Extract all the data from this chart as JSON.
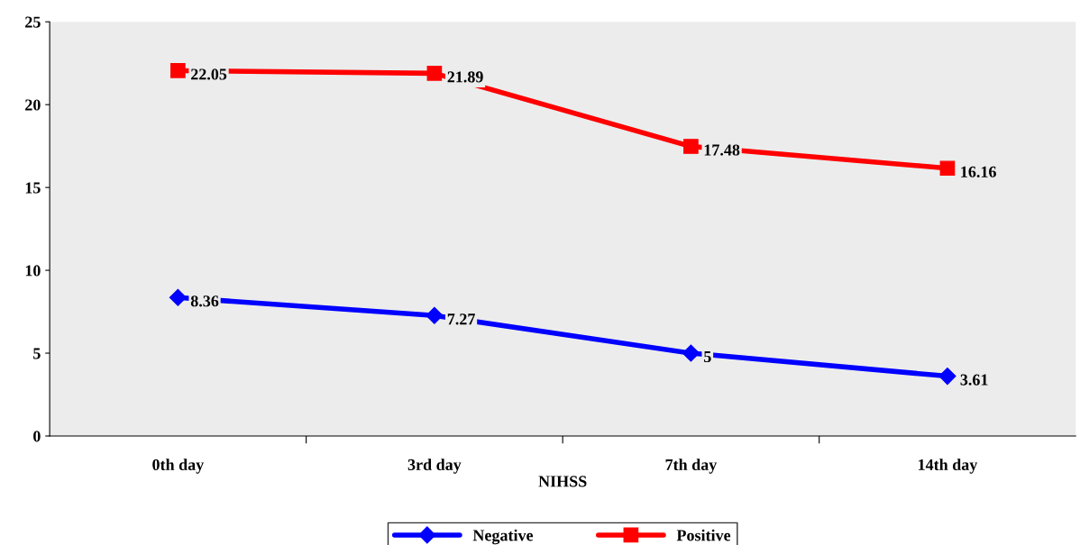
{
  "chart_data": {
    "type": "line",
    "xlabel": "NIHSS",
    "categories": [
      "0th day",
      "3rd day",
      "7th day",
      "14th day"
    ],
    "series": [
      {
        "name": "Negative",
        "color": "#0000ff",
        "marker": "diamond",
        "values": [
          8.36,
          7.27,
          5,
          3.61
        ]
      },
      {
        "name": "Positive",
        "color": "#ff0000",
        "marker": "square",
        "values": [
          22.05,
          21.89,
          17.48,
          16.16
        ]
      }
    ],
    "ylim": [
      0,
      25
    ],
    "yticks": [
      0,
      5,
      10,
      15,
      20,
      25
    ],
    "grid": false,
    "legend": "bottom",
    "data_labels": true,
    "line_style": "solid"
  }
}
